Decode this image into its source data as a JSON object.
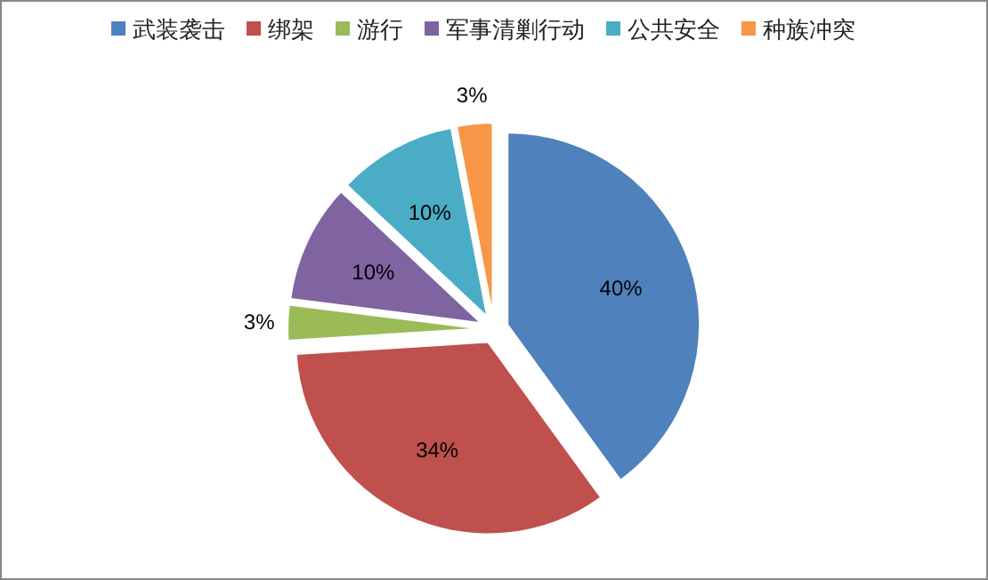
{
  "chart_data": {
    "type": "pie",
    "categories": [
      "武装袭击",
      "绑架",
      "游行",
      "军事清剿行动",
      "公共安全",
      "种族冲突"
    ],
    "values": [
      40,
      34,
      3,
      10,
      10,
      3
    ],
    "colors": [
      "#4f81bd",
      "#c0504d",
      "#9bbb59",
      "#8064a2",
      "#4bacc6",
      "#f79646"
    ],
    "value_labels": [
      "40%",
      "34%",
      "3%",
      "10%",
      "10%",
      "3%"
    ],
    "legend": "top"
  }
}
